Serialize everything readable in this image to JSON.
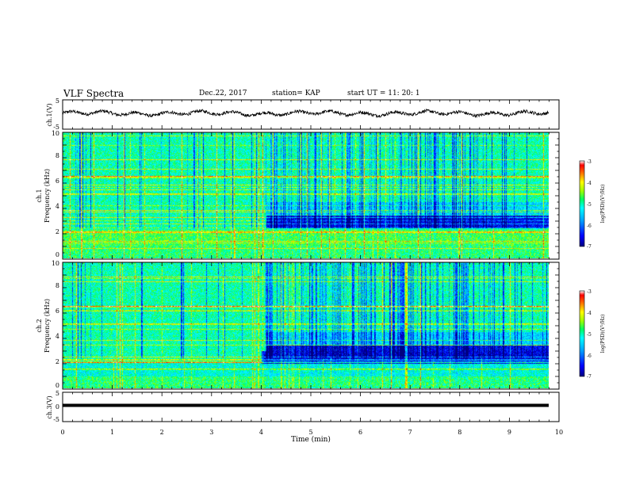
{
  "header": {
    "title": "VLF Spectra",
    "date": "Dec.22, 2017",
    "station": "station= KAP",
    "start": "start  UT =   11: 20: 1"
  },
  "chart_data": [
    {
      "type": "line",
      "panel": "ch1-waveform",
      "ylabel": "ch.1(V)",
      "ylim": [
        -5,
        5
      ],
      "yticks": [
        "5",
        "-5"
      ],
      "xlim": [
        0,
        10
      ],
      "series": [
        {
          "x_range": [
            0,
            9.8
          ],
          "style": "noisy oscillation about 0 V, amplitude about 1.5-2 V"
        }
      ]
    },
    {
      "type": "heatmap",
      "panel": "ch1-spectrogram",
      "ylabel": "ch.1\nFrequency (kHz)",
      "ylim": [
        0,
        10
      ],
      "yticks": [
        "0",
        "2",
        "4",
        "6",
        "8",
        "10"
      ],
      "xlim": [
        0,
        10
      ],
      "colorbar": {
        "label": "log(PSD)(V²/Hz)",
        "range": [
          -7,
          -3
        ],
        "ticks": [
          "-3",
          "-4",
          "-5",
          "-6",
          "-7"
        ]
      }
    },
    {
      "type": "heatmap",
      "panel": "ch2-spectrogram",
      "ylabel": "ch.2\nFrequency (kHz)",
      "ylim": [
        0,
        10
      ],
      "yticks": [
        "0",
        "2",
        "4",
        "6",
        "8",
        "10"
      ],
      "xlim": [
        0,
        10
      ],
      "colorbar": {
        "label": "log(PSD)(V²/Hz)",
        "range": [
          -7,
          -3
        ],
        "ticks": [
          "-3",
          "-4",
          "-5",
          "-6",
          "-7"
        ]
      }
    },
    {
      "type": "line",
      "panel": "ch3-waveform",
      "ylabel": "ch.3(V)",
      "ylim": [
        -5,
        5
      ],
      "yticks": [
        "5",
        "0",
        "-5"
      ],
      "xlim": [
        0,
        10
      ],
      "series": [
        {
          "x_range": [
            0,
            9.8
          ],
          "style": "flat thick line",
          "value": 0
        }
      ]
    }
  ],
  "xaxis": {
    "label": "Time (min)",
    "ticks": [
      "0",
      "1",
      "2",
      "3",
      "4",
      "5",
      "6",
      "7",
      "8",
      "9",
      "10"
    ]
  }
}
